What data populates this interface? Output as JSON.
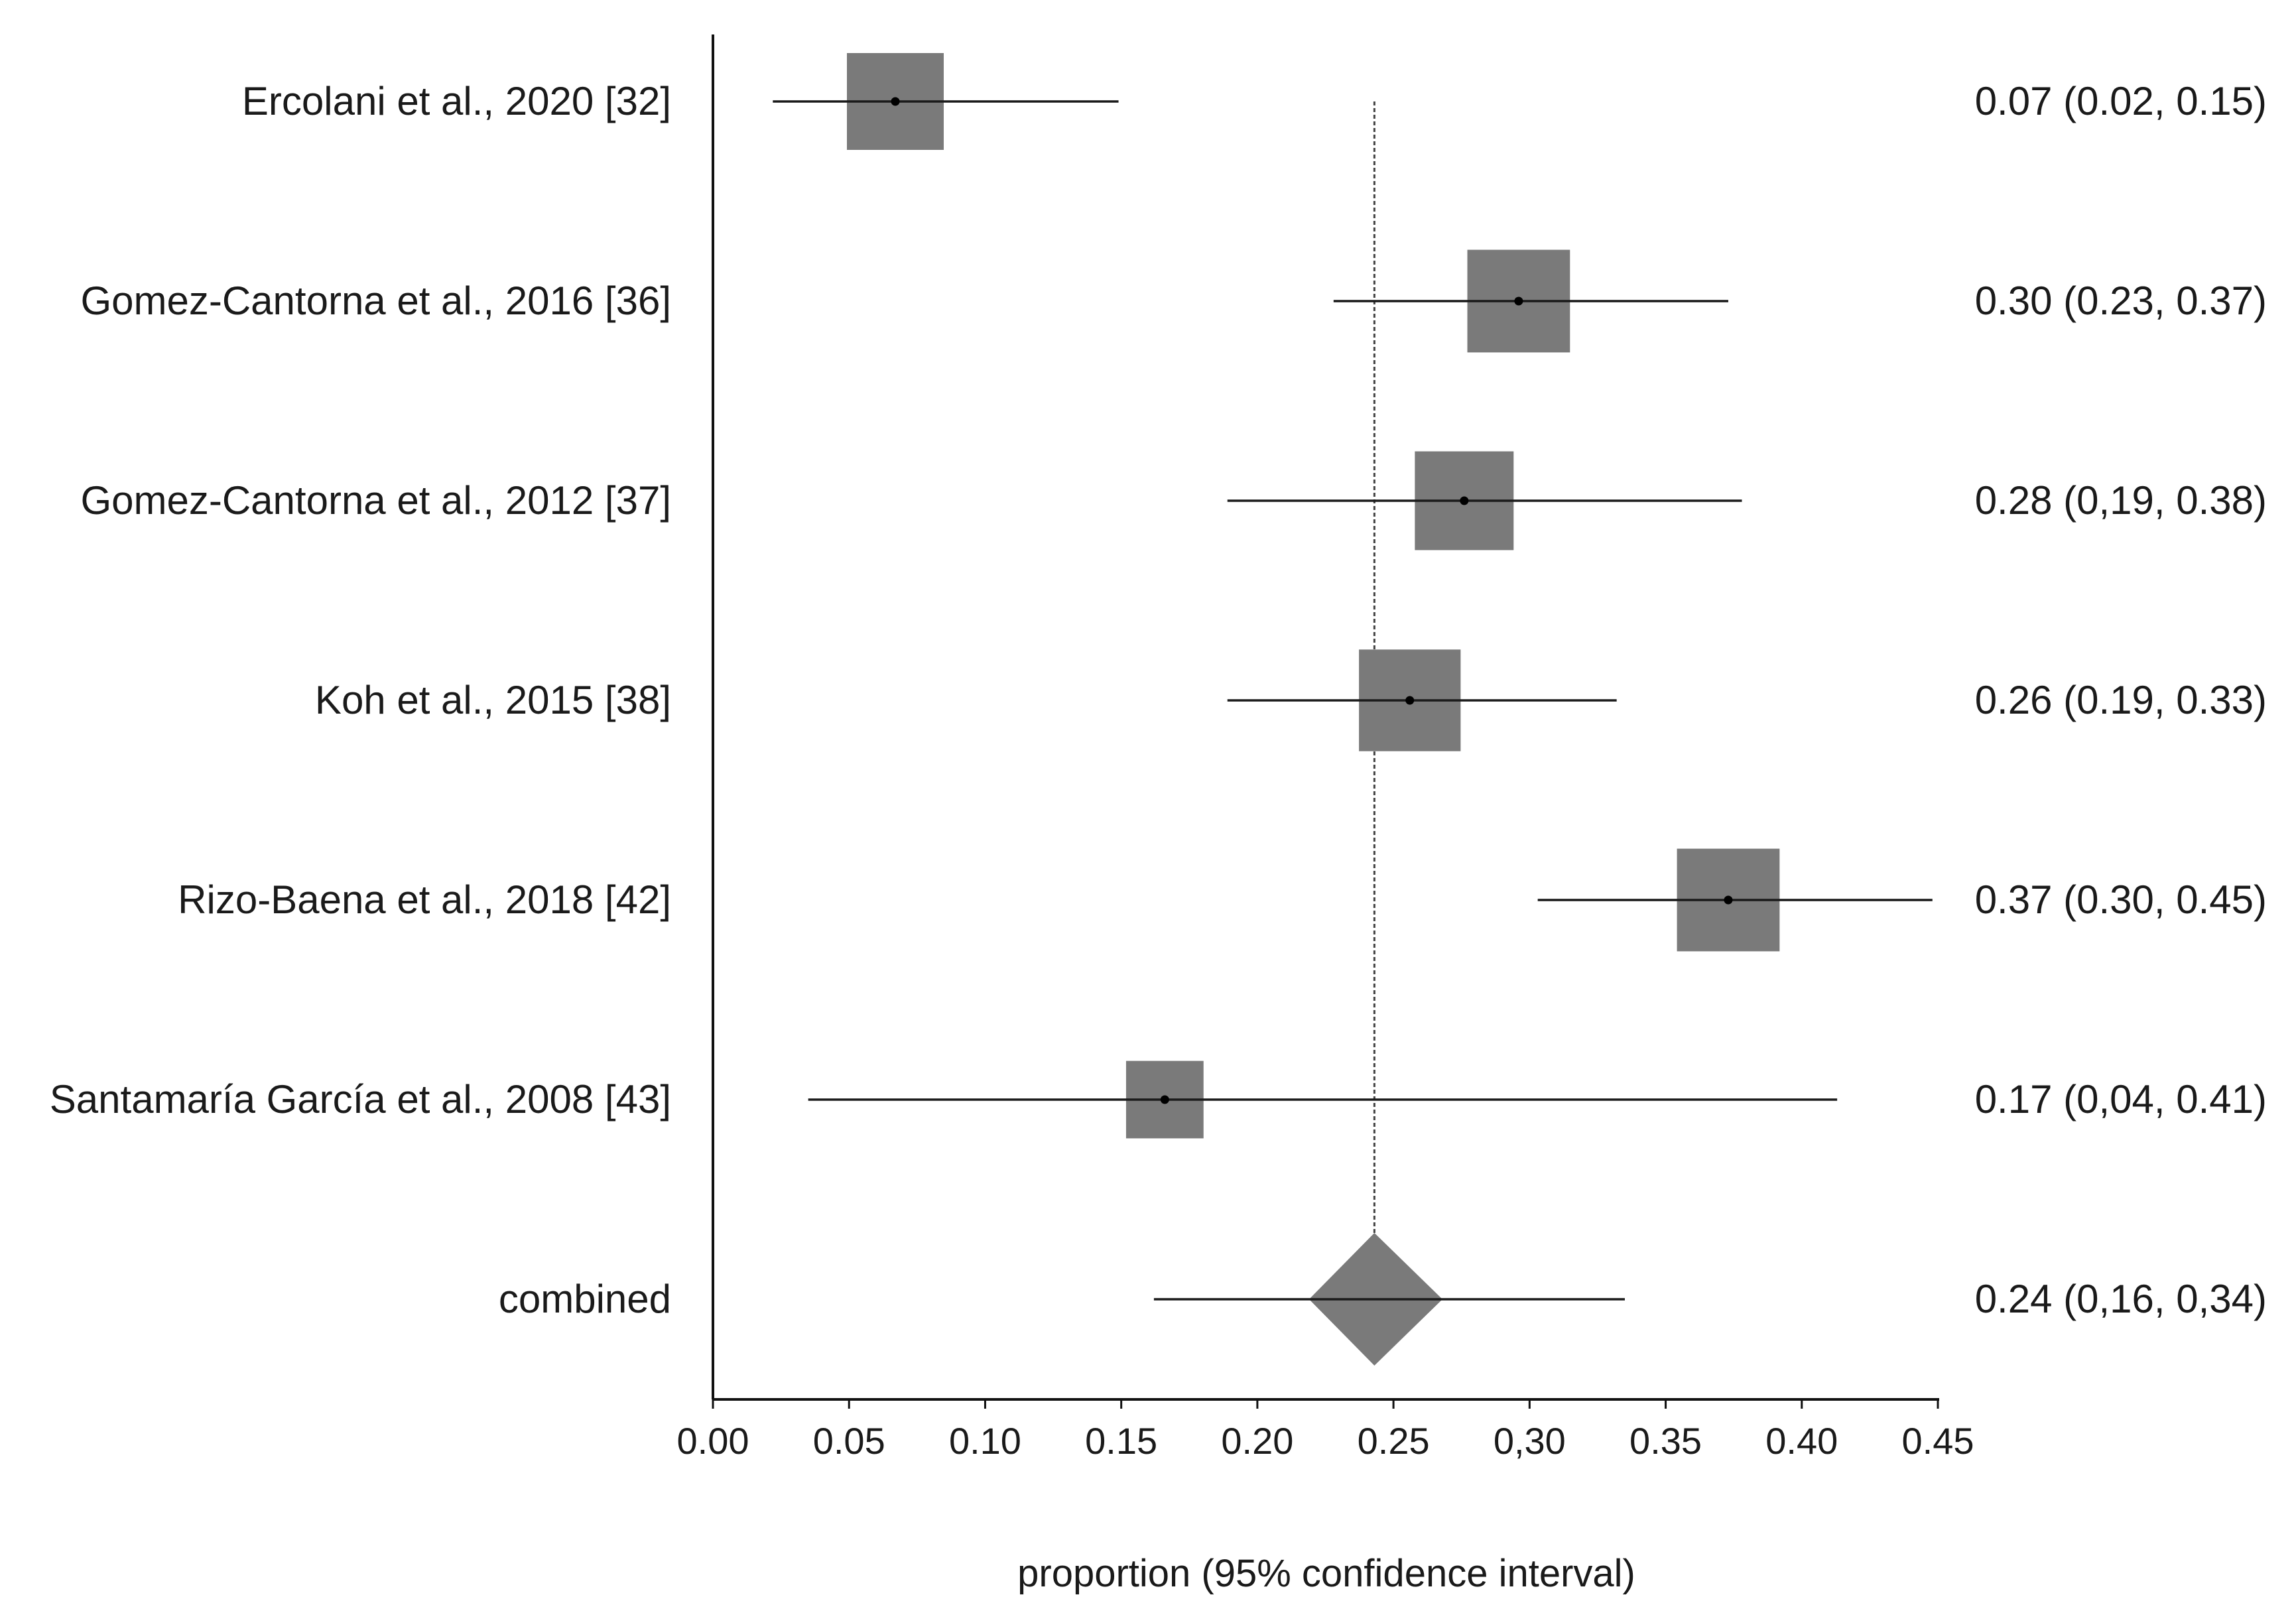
{
  "chart_data": {
    "type": "forest",
    "xlabel": "proportion (95% confidence interval)",
    "xlim": [
      0.0,
      0.45
    ],
    "x_ticks": [
      0.0,
      0.05,
      0.1,
      0.15,
      0.2,
      0.25,
      0.3,
      0.35,
      0.4,
      0.45
    ],
    "x_tick_labels": [
      "0.00",
      "0.05",
      "0.10",
      "0.15",
      "0.20",
      "0.25",
      "0,30",
      "0.35",
      "0.40",
      "0.45"
    ],
    "reference_line": 0.243,
    "studies": [
      {
        "label": "Ercolani et al., 2020 [32]",
        "estimate": 0.067,
        "lower": 0.022,
        "upper": 0.149,
        "weight": 1.0,
        "ci_text": "0.07 (0.02, 0.15)"
      },
      {
        "label": "Gomez-Cantorna et al., 2016 [36]",
        "estimate": 0.296,
        "lower": 0.228,
        "upper": 0.373,
        "weight": 1.06,
        "ci_text": "0.30 (0.23, 0.37)"
      },
      {
        "label": "Gomez-Cantorna et al., 2012 [37]",
        "estimate": 0.276,
        "lower": 0.189,
        "upper": 0.378,
        "weight": 1.02,
        "ci_text": "0.28 (0,19, 0.38)"
      },
      {
        "label": "Koh et al., 2015 [38]",
        "estimate": 0.256,
        "lower": 0.189,
        "upper": 0.332,
        "weight": 1.05,
        "ci_text": "0.26 (0.19, 0.33)"
      },
      {
        "label": "Rizo-Baena et al., 2018 [42]",
        "estimate": 0.373,
        "lower": 0.303,
        "upper": 0.448,
        "weight": 1.06,
        "ci_text": "0.37 (0.30, 0.45)"
      },
      {
        "label": "Santamaría García et al., 2008 [43]",
        "estimate": 0.166,
        "lower": 0.035,
        "upper": 0.413,
        "weight": 0.8,
        "ci_text": "0.17 (0,04, 0.41)"
      }
    ],
    "combined": {
      "label": "combined",
      "estimate": 0.243,
      "lower": 0.162,
      "upper": 0.335,
      "diamond_lower": 0.219,
      "diamond_upper": 0.268,
      "ci_text": "0.24 (0,16, 0,34)"
    }
  }
}
